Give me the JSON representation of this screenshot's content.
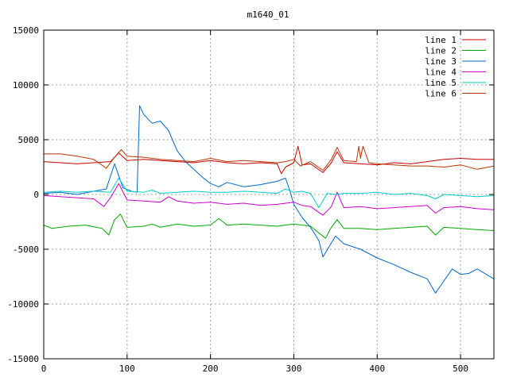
{
  "chart_data": {
    "type": "line",
    "title": "m1640_01",
    "xlabel": "",
    "ylabel": "",
    "xlim": [
      0,
      540
    ],
    "ylim": [
      -15000,
      15000
    ],
    "x_ticks": [
      0,
      100,
      200,
      300,
      400,
      500
    ],
    "y_ticks": [
      -15000,
      -10000,
      -5000,
      0,
      5000,
      10000,
      15000
    ],
    "grid": true,
    "legend_position": "top-right",
    "series": [
      {
        "name": "line 1",
        "color": "#cc0000",
        "points": [
          [
            0,
            3000
          ],
          [
            20,
            2900
          ],
          [
            40,
            2800
          ],
          [
            60,
            2900
          ],
          [
            80,
            3000
          ],
          [
            90,
            3800
          ],
          [
            100,
            3100
          ],
          [
            120,
            3200
          ],
          [
            140,
            3100
          ],
          [
            160,
            3000
          ],
          [
            180,
            2900
          ],
          [
            200,
            3100
          ],
          [
            220,
            2900
          ],
          [
            240,
            2800
          ],
          [
            260,
            2900
          ],
          [
            280,
            2800
          ],
          [
            285,
            1900
          ],
          [
            290,
            2500
          ],
          [
            300,
            2900
          ],
          [
            305,
            4400
          ],
          [
            310,
            2700
          ],
          [
            320,
            2800
          ],
          [
            335,
            2000
          ],
          [
            345,
            2900
          ],
          [
            352,
            3900
          ],
          [
            360,
            2900
          ],
          [
            380,
            2800
          ],
          [
            400,
            2700
          ],
          [
            420,
            2900
          ],
          [
            440,
            2800
          ],
          [
            460,
            3000
          ],
          [
            480,
            3200
          ],
          [
            500,
            3300
          ],
          [
            520,
            3200
          ],
          [
            540,
            3200
          ]
        ]
      },
      {
        "name": "line 2",
        "color": "#00aa00",
        "points": [
          [
            0,
            -2800
          ],
          [
            10,
            -3100
          ],
          [
            30,
            -2900
          ],
          [
            50,
            -2800
          ],
          [
            70,
            -3100
          ],
          [
            78,
            -3700
          ],
          [
            85,
            -2300
          ],
          [
            92,
            -1800
          ],
          [
            100,
            -3000
          ],
          [
            120,
            -2900
          ],
          [
            130,
            -2700
          ],
          [
            140,
            -3000
          ],
          [
            160,
            -2700
          ],
          [
            180,
            -2900
          ],
          [
            200,
            -2800
          ],
          [
            210,
            -2200
          ],
          [
            220,
            -2800
          ],
          [
            240,
            -2700
          ],
          [
            260,
            -2800
          ],
          [
            280,
            -2900
          ],
          [
            300,
            -2700
          ],
          [
            320,
            -2900
          ],
          [
            338,
            -4000
          ],
          [
            345,
            -3000
          ],
          [
            352,
            -2300
          ],
          [
            360,
            -3100
          ],
          [
            380,
            -3100
          ],
          [
            400,
            -3200
          ],
          [
            420,
            -3100
          ],
          [
            440,
            -3000
          ],
          [
            460,
            -2900
          ],
          [
            470,
            -3700
          ],
          [
            480,
            -3000
          ],
          [
            500,
            -3100
          ],
          [
            520,
            -3200
          ],
          [
            540,
            -3300
          ]
        ]
      },
      {
        "name": "line 3",
        "color": "#0066cc",
        "points": [
          [
            0,
            100
          ],
          [
            20,
            200
          ],
          [
            40,
            0
          ],
          [
            60,
            300
          ],
          [
            75,
            500
          ],
          [
            85,
            2800
          ],
          [
            95,
            600
          ],
          [
            105,
            300
          ],
          [
            112,
            200
          ],
          [
            115,
            8100
          ],
          [
            120,
            7300
          ],
          [
            130,
            6500
          ],
          [
            140,
            6700
          ],
          [
            150,
            5800
          ],
          [
            160,
            4000
          ],
          [
            170,
            3000
          ],
          [
            180,
            2300
          ],
          [
            190,
            1600
          ],
          [
            200,
            1000
          ],
          [
            210,
            700
          ],
          [
            220,
            1100
          ],
          [
            240,
            700
          ],
          [
            260,
            900
          ],
          [
            280,
            1200
          ],
          [
            290,
            1500
          ],
          [
            295,
            400
          ],
          [
            300,
            -900
          ],
          [
            310,
            -2100
          ],
          [
            320,
            -3000
          ],
          [
            330,
            -4200
          ],
          [
            335,
            -5700
          ],
          [
            342,
            -4800
          ],
          [
            350,
            -3800
          ],
          [
            360,
            -4500
          ],
          [
            380,
            -5000
          ],
          [
            400,
            -5800
          ],
          [
            420,
            -6400
          ],
          [
            440,
            -7100
          ],
          [
            460,
            -7700
          ],
          [
            470,
            -9000
          ],
          [
            480,
            -7900
          ],
          [
            490,
            -6800
          ],
          [
            500,
            -7300
          ],
          [
            510,
            -7200
          ],
          [
            520,
            -6800
          ],
          [
            540,
            -7700
          ]
        ]
      },
      {
        "name": "line 4",
        "color": "#cc00cc",
        "points": [
          [
            0,
            -100
          ],
          [
            20,
            -200
          ],
          [
            40,
            -300
          ],
          [
            60,
            -400
          ],
          [
            72,
            -1100
          ],
          [
            80,
            -300
          ],
          [
            90,
            1000
          ],
          [
            100,
            -500
          ],
          [
            120,
            -600
          ],
          [
            140,
            -700
          ],
          [
            150,
            -200
          ],
          [
            160,
            -600
          ],
          [
            180,
            -800
          ],
          [
            200,
            -700
          ],
          [
            220,
            -900
          ],
          [
            240,
            -800
          ],
          [
            260,
            -1000
          ],
          [
            280,
            -900
          ],
          [
            300,
            -700
          ],
          [
            310,
            -1000
          ],
          [
            320,
            -1100
          ],
          [
            335,
            -1900
          ],
          [
            345,
            -1100
          ],
          [
            352,
            200
          ],
          [
            360,
            -1200
          ],
          [
            380,
            -1100
          ],
          [
            400,
            -1300
          ],
          [
            420,
            -1200
          ],
          [
            440,
            -1100
          ],
          [
            460,
            -1000
          ],
          [
            470,
            -1700
          ],
          [
            480,
            -1200
          ],
          [
            500,
            -1100
          ],
          [
            520,
            -1300
          ],
          [
            540,
            -1400
          ]
        ]
      },
      {
        "name": "line 5",
        "color": "#00cccc",
        "points": [
          [
            0,
            200
          ],
          [
            20,
            300
          ],
          [
            40,
            200
          ],
          [
            60,
            300
          ],
          [
            80,
            200
          ],
          [
            90,
            1500
          ],
          [
            100,
            300
          ],
          [
            120,
            200
          ],
          [
            130,
            400
          ],
          [
            140,
            100
          ],
          [
            160,
            200
          ],
          [
            180,
            300
          ],
          [
            200,
            200
          ],
          [
            220,
            200
          ],
          [
            240,
            300
          ],
          [
            260,
            200
          ],
          [
            280,
            100
          ],
          [
            290,
            500
          ],
          [
            300,
            200
          ],
          [
            310,
            300
          ],
          [
            320,
            100
          ],
          [
            330,
            -1200
          ],
          [
            340,
            100
          ],
          [
            350,
            0
          ],
          [
            360,
            100
          ],
          [
            380,
            100
          ],
          [
            400,
            200
          ],
          [
            420,
            0
          ],
          [
            440,
            100
          ],
          [
            460,
            -100
          ],
          [
            470,
            -400
          ],
          [
            480,
            0
          ],
          [
            500,
            -100
          ],
          [
            520,
            -200
          ],
          [
            540,
            -100
          ]
        ]
      },
      {
        "name": "line 6",
        "color": "#bb3300",
        "points": [
          [
            0,
            3700
          ],
          [
            20,
            3700
          ],
          [
            40,
            3500
          ],
          [
            60,
            3200
          ],
          [
            75,
            2400
          ],
          [
            85,
            3400
          ],
          [
            93,
            4100
          ],
          [
            100,
            3500
          ],
          [
            120,
            3400
          ],
          [
            140,
            3200
          ],
          [
            160,
            3100
          ],
          [
            180,
            3000
          ],
          [
            200,
            3300
          ],
          [
            220,
            3000
          ],
          [
            240,
            3100
          ],
          [
            260,
            3000
          ],
          [
            280,
            2900
          ],
          [
            290,
            3000
          ],
          [
            300,
            3200
          ],
          [
            308,
            2600
          ],
          [
            320,
            3000
          ],
          [
            335,
            2200
          ],
          [
            345,
            3200
          ],
          [
            352,
            4300
          ],
          [
            360,
            3100
          ],
          [
            375,
            3000
          ],
          [
            378,
            4400
          ],
          [
            380,
            3300
          ],
          [
            383,
            4400
          ],
          [
            390,
            2900
          ],
          [
            400,
            2800
          ],
          [
            420,
            2700
          ],
          [
            440,
            2600
          ],
          [
            460,
            2600
          ],
          [
            480,
            2500
          ],
          [
            500,
            2700
          ],
          [
            520,
            2300
          ],
          [
            540,
            2600
          ]
        ]
      }
    ]
  }
}
